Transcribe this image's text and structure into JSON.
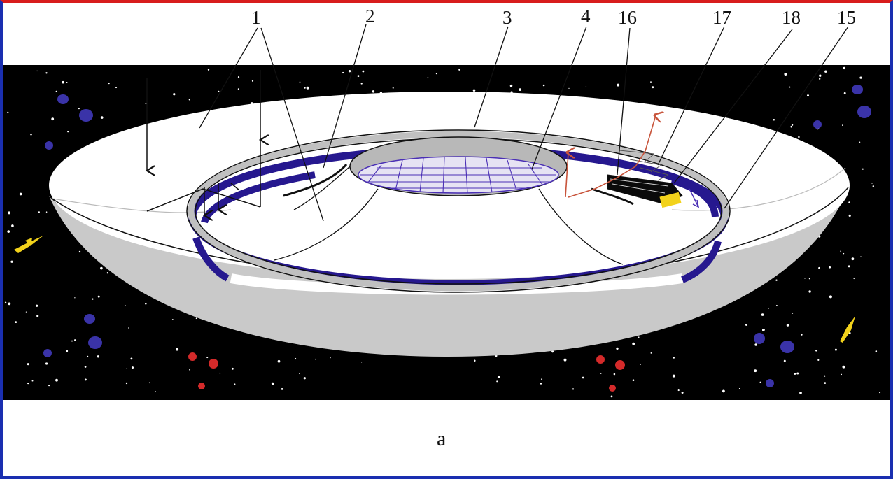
{
  "figure": {
    "labels": [
      {
        "id": "l1",
        "text": "1"
      },
      {
        "id": "l2",
        "text": "2"
      },
      {
        "id": "l3",
        "text": "3"
      },
      {
        "id": "l4",
        "text": "4"
      },
      {
        "id": "l16",
        "text": "16"
      },
      {
        "id": "l17",
        "text": "17"
      },
      {
        "id": "l18",
        "text": "18"
      },
      {
        "id": "l15",
        "text": "15"
      }
    ],
    "subfigure_label": "a"
  },
  "colors": {
    "space": "#000000",
    "dish_light": "#ffffff",
    "dish_outer": "#c9c9c9",
    "ring": "#c0c0c0",
    "track": "#26188f",
    "grid": "#4a2fb5",
    "vehicle_accent": "#f2d21b",
    "arrow_red": "#c8553c",
    "frame_top": "#d81c1c",
    "frame_side": "#1a2fb0"
  }
}
